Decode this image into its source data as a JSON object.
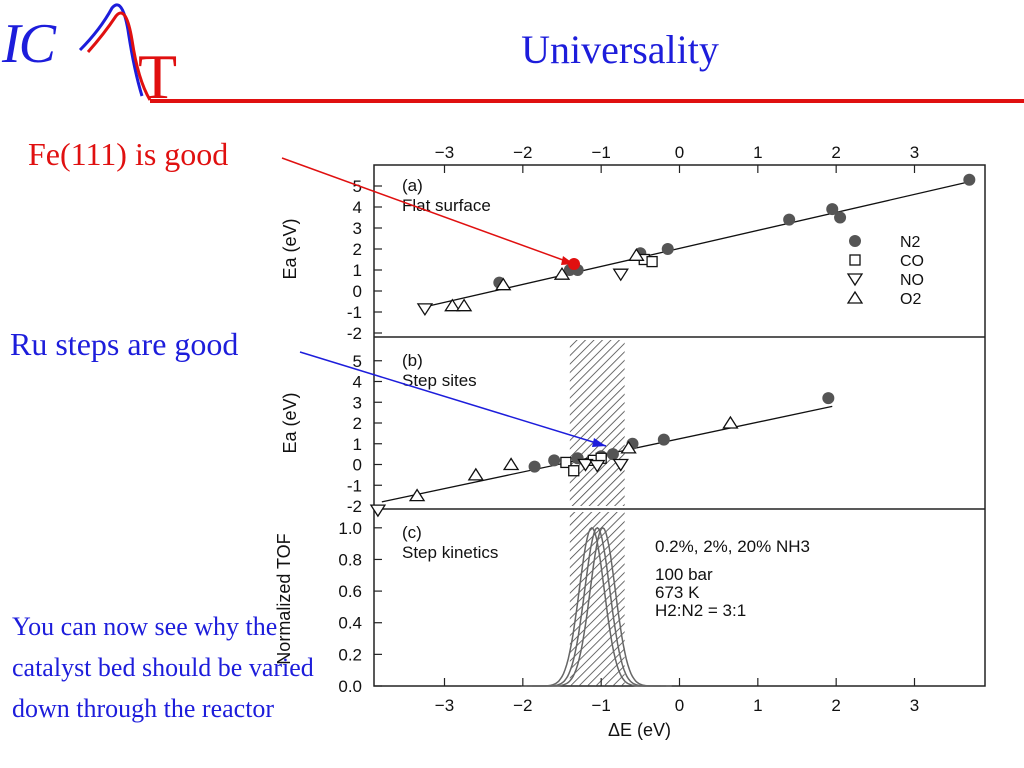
{
  "header": {
    "logo_text_ic": "IC",
    "logo_text_t": "T",
    "title": "Universality",
    "accent_red": "#e01010",
    "accent_blue": "#1d1ddb"
  },
  "annotations": {
    "fe": "Fe(111) is good",
    "ru": "Ru steps are good",
    "note": "You can now see why the catalyst bed should  be varied down through the reactor"
  },
  "chart_data": [
    {
      "type": "scatter",
      "panel_label": "(a)",
      "panel_title": "Flat surface",
      "xlabel": "",
      "ylabel": "Ea (eV)",
      "xlim": [
        -3.9,
        3.9
      ],
      "ylim": [
        -2,
        6
      ],
      "x_ticks": [
        -3,
        -2,
        -1,
        0,
        1,
        2,
        3
      ],
      "y_ticks": [
        -2,
        -1,
        0,
        1,
        2,
        3,
        4,
        5
      ],
      "legend": {
        "position": "right",
        "entries": [
          {
            "marker": "filled-circle",
            "label": "N2"
          },
          {
            "marker": "square",
            "label": "CO"
          },
          {
            "marker": "triangle-down",
            "label": "NO"
          },
          {
            "marker": "triangle-up",
            "label": "O2"
          }
        ]
      },
      "fit_line": [
        [
          -3.3,
          -0.8
        ],
        [
          3.7,
          5.2
        ]
      ],
      "series": [
        {
          "name": "N2",
          "marker": "filled-circle",
          "points": [
            [
              -2.3,
              0.4
            ],
            [
              -1.4,
              1.0
            ],
            [
              -1.3,
              1.0
            ],
            [
              -0.5,
              1.8
            ],
            [
              -0.15,
              2.0
            ],
            [
              1.4,
              3.4
            ],
            [
              1.95,
              3.9
            ],
            [
              2.05,
              3.5
            ],
            [
              3.7,
              5.3
            ]
          ]
        },
        {
          "name": "CO",
          "marker": "square",
          "points": [
            [
              -0.45,
              1.5
            ],
            [
              -0.35,
              1.4
            ]
          ]
        },
        {
          "name": "NO",
          "marker": "triangle-down",
          "points": [
            [
              -3.25,
              -0.85
            ],
            [
              -0.75,
              0.8
            ]
          ]
        },
        {
          "name": "O2",
          "marker": "triangle-up",
          "points": [
            [
              -2.25,
              0.3
            ],
            [
              -2.9,
              -0.7
            ],
            [
              -2.75,
              -0.7
            ],
            [
              -1.5,
              0.8
            ],
            [
              -0.55,
              1.7
            ]
          ]
        }
      ]
    },
    {
      "type": "scatter",
      "panel_label": "(b)",
      "panel_title": "Step sites",
      "xlabel": "",
      "ylabel": "Ea (eV)",
      "xlim": [
        -3.9,
        3.9
      ],
      "ylim": [
        -2,
        6
      ],
      "y_ticks": [
        -2,
        -1,
        0,
        1,
        2,
        3,
        4,
        5
      ],
      "shaded_band": [
        -1.4,
        -0.7
      ],
      "fit_line": [
        [
          -3.8,
          -1.8
        ],
        [
          1.95,
          2.8
        ]
      ],
      "series": [
        {
          "name": "N2",
          "marker": "filled-circle",
          "points": [
            [
              -1.85,
              -0.1
            ],
            [
              -1.6,
              0.2
            ],
            [
              -1.3,
              0.3
            ],
            [
              -1.0,
              0.4
            ],
            [
              -0.85,
              0.5
            ],
            [
              -0.6,
              1.0
            ],
            [
              -0.2,
              1.2
            ],
            [
              1.9,
              3.2
            ]
          ]
        },
        {
          "name": "CO",
          "marker": "square",
          "points": [
            [
              -1.45,
              0.1
            ],
            [
              -1.35,
              -0.3
            ],
            [
              -1.1,
              0.2
            ],
            [
              -1.0,
              0.3
            ]
          ]
        },
        {
          "name": "NO",
          "marker": "triangle-down",
          "points": [
            [
              -3.85,
              -2.2
            ],
            [
              -1.2,
              0.0
            ],
            [
              -1.05,
              -0.05
            ],
            [
              -0.75,
              0.0
            ]
          ]
        },
        {
          "name": "O2",
          "marker": "triangle-up",
          "points": [
            [
              -3.35,
              -1.5
            ],
            [
              -2.6,
              -0.5
            ],
            [
              -2.15,
              0.0
            ],
            [
              -0.65,
              0.8
            ],
            [
              0.65,
              2.0
            ]
          ]
        }
      ]
    },
    {
      "type": "line",
      "panel_label": "(c)",
      "panel_title": "Step kinetics",
      "xlabel": "ΔE (eV)",
      "ylabel": "Normalized TOF",
      "xlim": [
        -3.9,
        3.9
      ],
      "ylim": [
        0,
        1.1
      ],
      "x_ticks": [
        -3,
        -2,
        -1,
        0,
        1,
        2,
        3
      ],
      "y_ticks": [
        0.0,
        0.2,
        0.4,
        0.6,
        0.8,
        1.0
      ],
      "y_tick_labels": [
        "0.0",
        "0.2",
        "0.4",
        "0.6",
        "0.8",
        "1.0"
      ],
      "shaded_band": [
        -1.4,
        -0.7
      ],
      "conditions": [
        "0.2%, 2%, 20%  NH3",
        "100 bar",
        "673 K",
        "H2:N2 = 3:1"
      ],
      "series": [
        {
          "peak_x": -1.12,
          "width": 0.16
        },
        {
          "peak_x": -1.05,
          "width": 0.16
        },
        {
          "peak_x": -0.98,
          "width": 0.16
        }
      ]
    }
  ]
}
